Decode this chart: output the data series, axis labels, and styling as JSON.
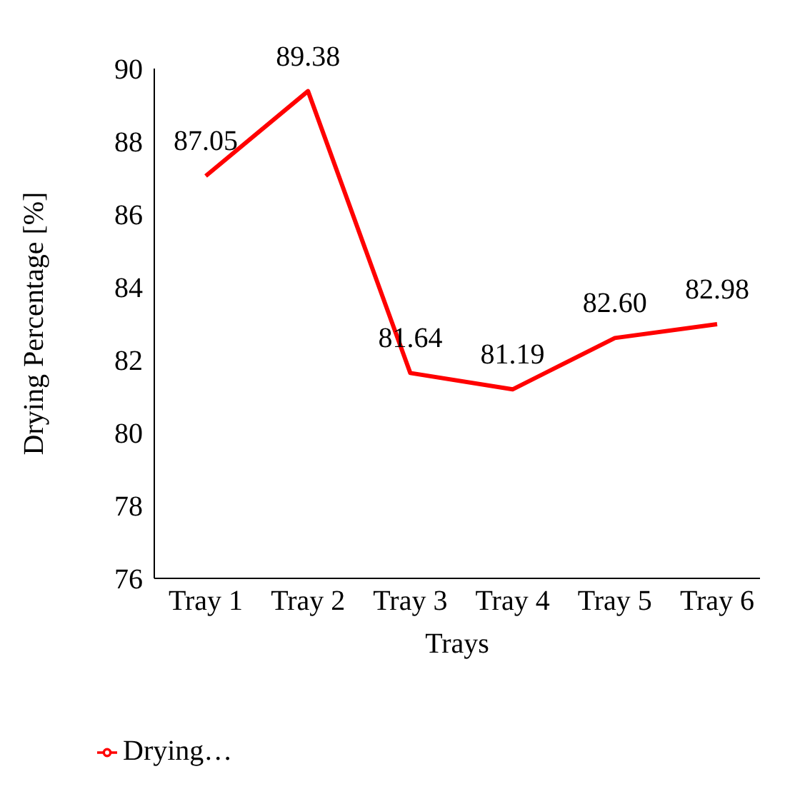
{
  "chart_data": {
    "type": "line",
    "xlabel": "Trays",
    "ylabel": "Drying Percentage [%]",
    "categories": [
      "Tray 1",
      "Tray 2",
      "Tray 3",
      "Tray 4",
      "Tray 5",
      "Tray 6"
    ],
    "series": [
      {
        "name": "Drying…",
        "color": "#ff0000",
        "values": [
          87.05,
          89.38,
          81.64,
          81.19,
          82.6,
          82.98
        ],
        "value_labels": [
          "87.05",
          "89.38",
          "81.64",
          "81.19",
          "82.60",
          "82.98"
        ]
      }
    ],
    "ylim": [
      76,
      90
    ],
    "yticks": [
      76,
      78,
      80,
      82,
      84,
      86,
      88,
      90
    ],
    "grid": false,
    "legend": "bottom left",
    "marker": "none",
    "line_style": "solid"
  }
}
